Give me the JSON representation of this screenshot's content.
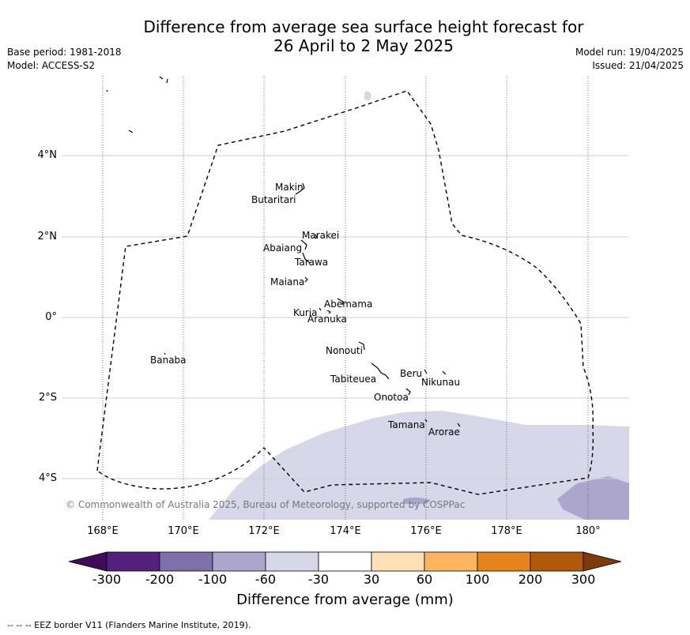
{
  "title_line1": "Difference from average sea surface height forecast for",
  "title_line2": "26 April to 2 May 2025",
  "meta_left": {
    "base_period": "Base period: 1981-2018",
    "model": "Model: ACCESS-S2"
  },
  "meta_right": {
    "model_run": "Model run: 19/04/2025",
    "issued": "Issued: 21/04/2025"
  },
  "x_ticks": [
    "168°E",
    "170°E",
    "172°E",
    "174°E",
    "176°E",
    "178°E",
    "180°"
  ],
  "y_ticks": [
    "4°N",
    "2°N",
    "0°",
    "2°S",
    "4°S"
  ],
  "places": [
    "Makin",
    "Butaritari",
    "Marakei",
    "Abaiang",
    "Tarawa",
    "Maiana",
    "Abemama",
    "Kuria",
    "Aranuka",
    "Nonouti",
    "Banaba",
    "Beru",
    "Nikunau",
    "Tabiteuea",
    "Onotoa",
    "Tamana",
    "Arorae"
  ],
  "copyright": "© Commonwealth of Australia 2025, Bureau of Meteorology, supported by COSPPac",
  "colorbar": {
    "ticks": [
      "-300",
      "-200",
      "-100",
      "-60",
      "-30",
      "30",
      "60",
      "100",
      "200",
      "300"
    ],
    "colors": [
      "#3f0b5a",
      "#53207e",
      "#7e70aa",
      "#aca6cd",
      "#d6d7e8",
      "#ffffff",
      "#fde0b4",
      "#fdb45f",
      "#e4841a",
      "#b1590a",
      "#7d3b06"
    ],
    "label": "Difference from average (mm)"
  },
  "footnote": "--  --  -- EEZ border V11 (Flanders Marine Institute, 2019)."
}
